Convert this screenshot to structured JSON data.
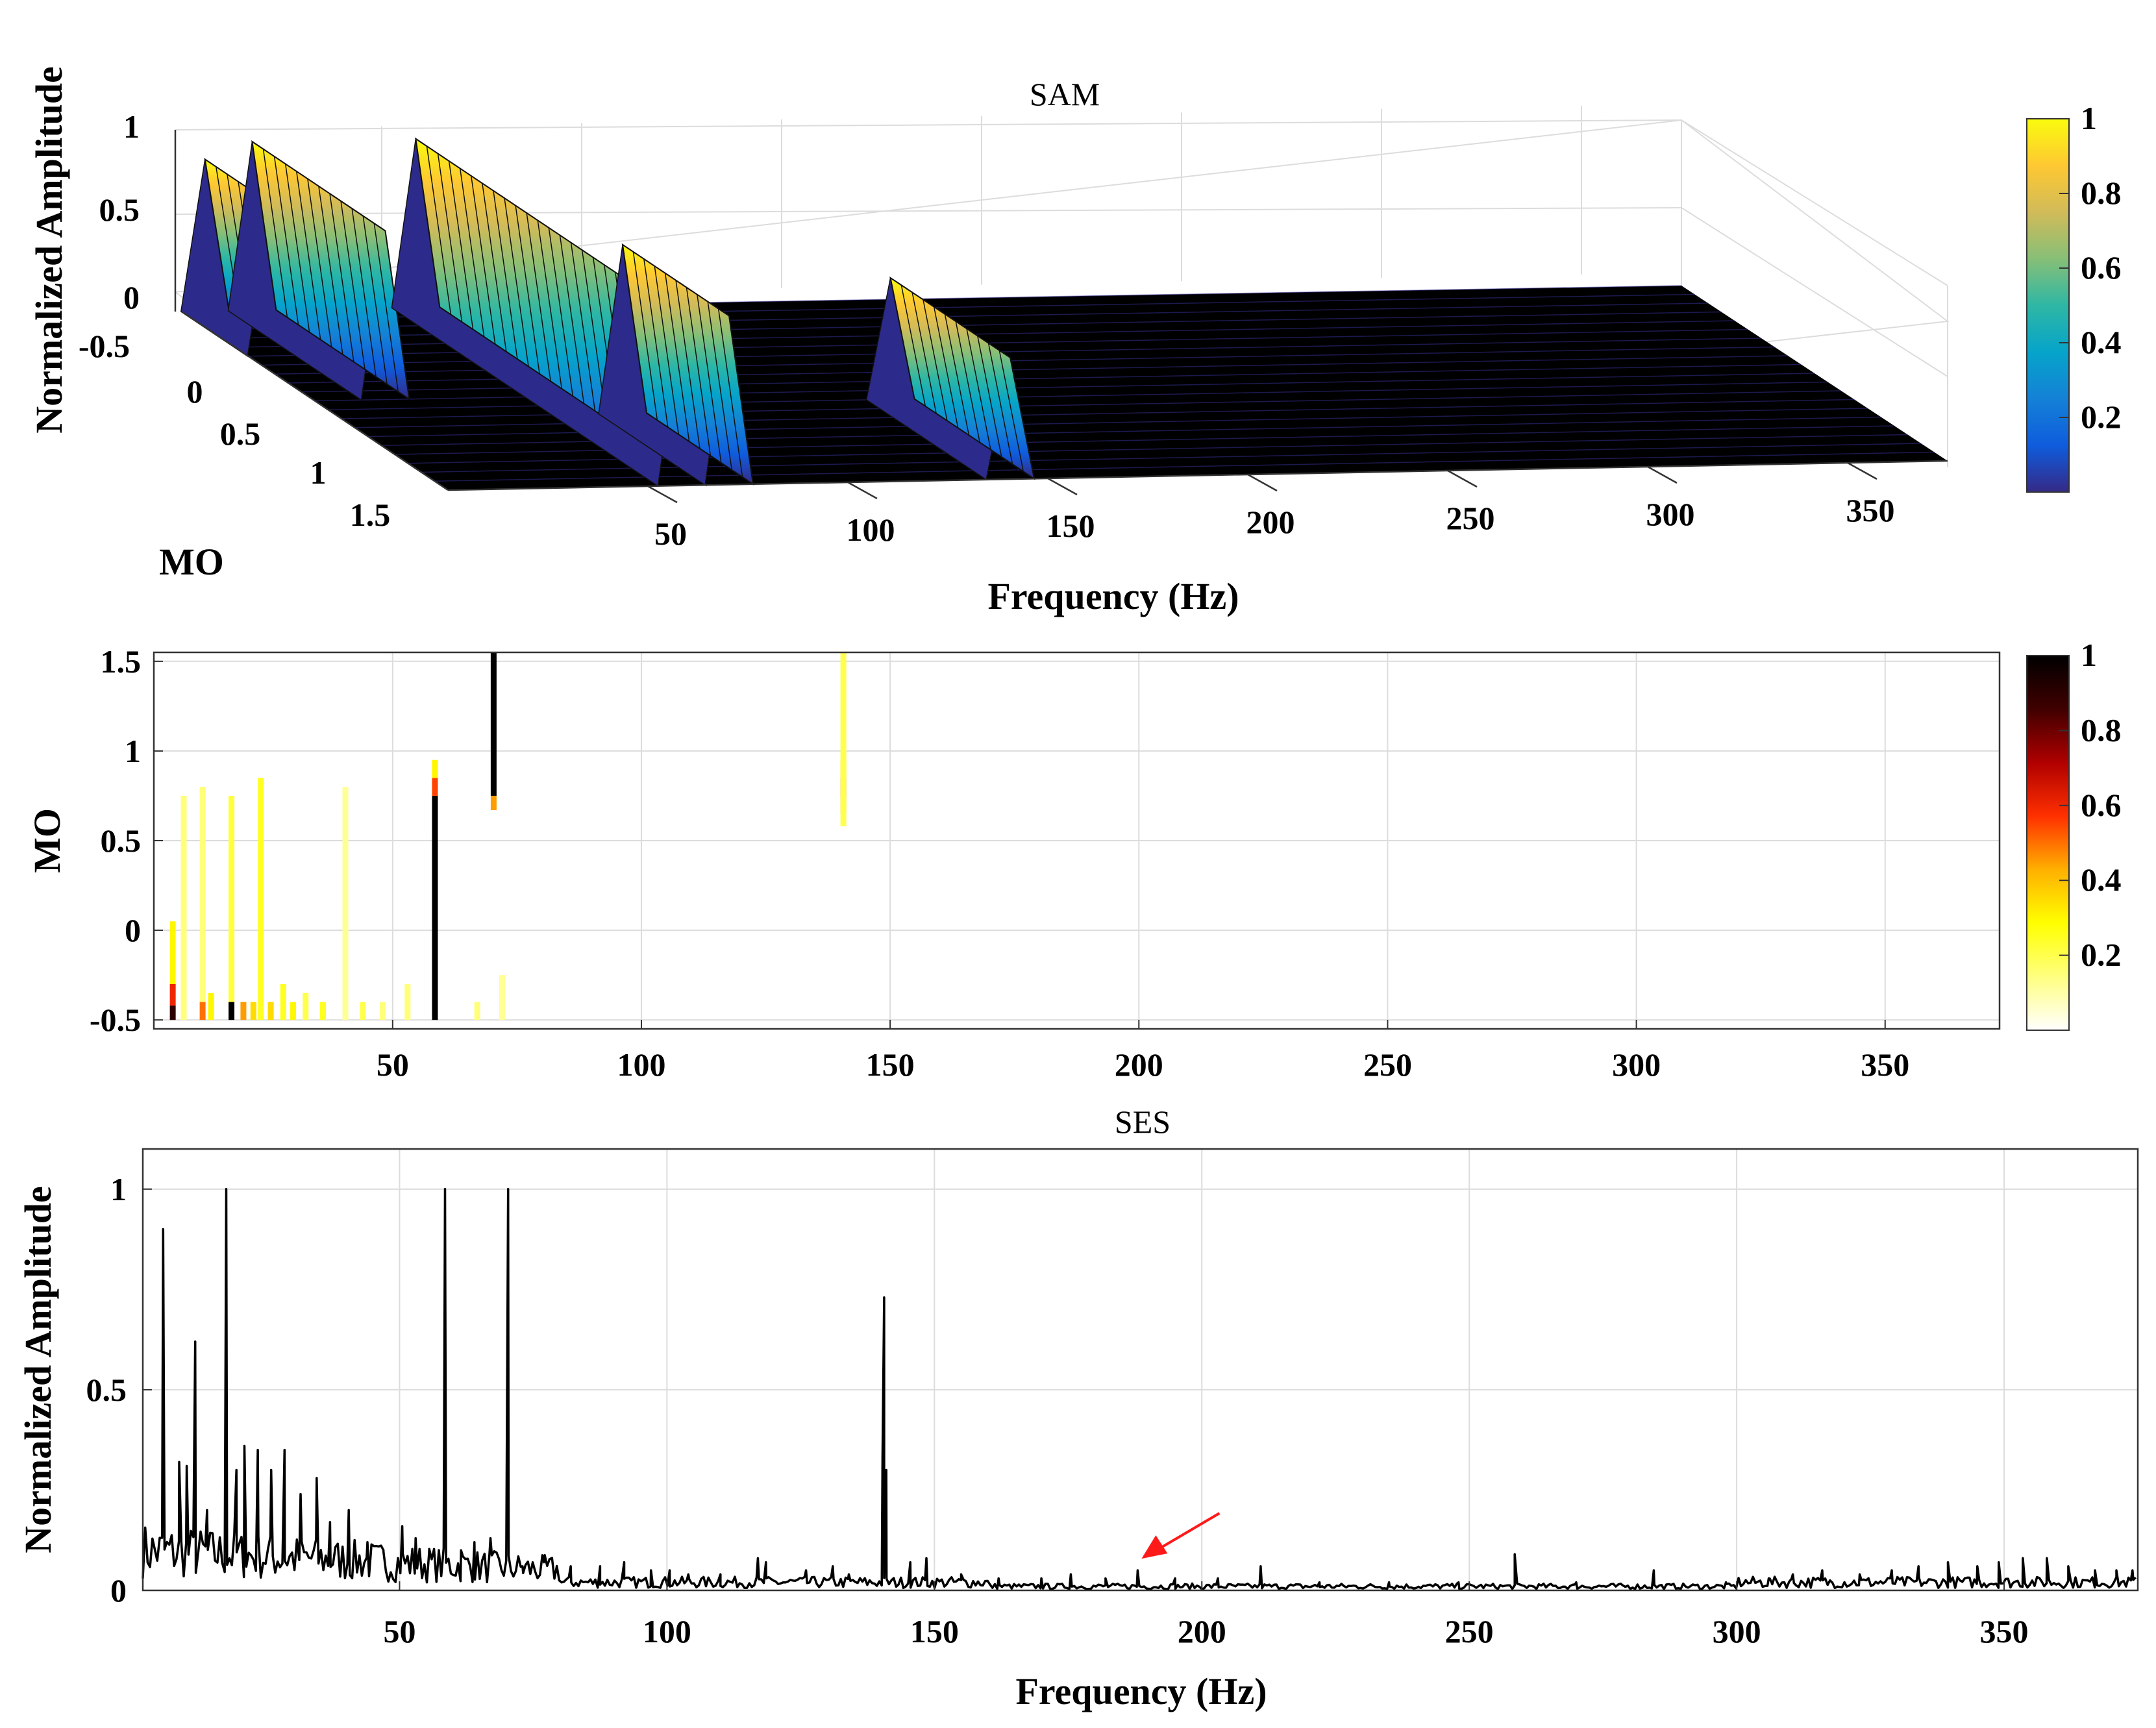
{
  "colors": {
    "surface_floor": "#000000",
    "trace": "#000000",
    "arrow": "#ff1a1a",
    "parula_stops": [
      "#352a87",
      "#0f5cdd",
      "#1481d6",
      "#06a4ca",
      "#2eb7a4",
      "#87bf77",
      "#d1bb59",
      "#fec832",
      "#f9fb0e"
    ],
    "hot_r_stops": [
      "#ffffff",
      "#ffff80",
      "#ffff00",
      "#ffb000",
      "#ff3000",
      "#b00000",
      "#400000",
      "#000000"
    ]
  },
  "chart_data": [
    {
      "id": "sam",
      "type": "surface3d",
      "title": "SAM",
      "xlabel": "Frequency (Hz)",
      "ylabel": "MO",
      "zlabel": "Normalized Amplitude",
      "x_ticks": [
        "50",
        "100",
        "150",
        "200",
        "250",
        "300",
        "350"
      ],
      "y_ticks": [
        "-0.5",
        "0",
        "0.5",
        "1",
        "1.5"
      ],
      "z_ticks": [
        "1",
        "0.5",
        "0",
        "-0.5"
      ],
      "xlim": [
        0,
        375
      ],
      "ylim": [
        -0.5,
        1.5
      ],
      "zlim": [
        -0.5,
        1
      ],
      "colorbar_ticks": [
        "1",
        "0.8",
        "0.6",
        "0.4",
        "0.2"
      ],
      "colormap": "parula",
      "ridges": [
        {
          "x": 5.8,
          "mo": [
            -0.5,
            0.0
          ],
          "z": 0.9
        },
        {
          "x": 17.6,
          "mo": [
            -0.5,
            0.5
          ],
          "z": 1.0
        },
        {
          "x": 58.5,
          "mo": [
            -0.5,
            1.5
          ],
          "z": 1.0
        },
        {
          "x": 70.3,
          "mo": [
            0.7,
            1.5
          ],
          "z": 1.0
        },
        {
          "x": 140.6,
          "mo": [
            0.6,
            1.5
          ],
          "z": 0.72
        }
      ]
    },
    {
      "id": "map",
      "type": "heatmap",
      "xlabel": "",
      "ylabel": "MO",
      "x_ticks": [
        50,
        100,
        150,
        200,
        250,
        300,
        350
      ],
      "y_ticks": [
        -0.5,
        0,
        0.5,
        1,
        1.5
      ],
      "xlim": [
        2,
        373
      ],
      "ylim": [
        -0.55,
        1.55
      ],
      "colorbar_ticks": [
        "1",
        "0.8",
        "0.6",
        "0.4",
        "0.2"
      ],
      "colormap": "hot_r",
      "columns": [
        {
          "x": 58.5,
          "mo_from": -0.5,
          "mo_to": 0.75,
          "level": 1.0
        },
        {
          "x": 58.5,
          "mo_from": 0.75,
          "mo_to": 0.85,
          "level": 0.55
        },
        {
          "x": 58.5,
          "mo_from": 0.85,
          "mo_to": 0.95,
          "level": 0.3
        },
        {
          "x": 70.3,
          "mo_from": 0.75,
          "mo_to": 1.55,
          "level": 1.0
        },
        {
          "x": 70.3,
          "mo_from": 0.67,
          "mo_to": 0.75,
          "level": 0.45
        },
        {
          "x": 140.6,
          "mo_from": 0.75,
          "mo_to": 0.85,
          "level": 0.6
        },
        {
          "x": 140.6,
          "mo_from": 0.65,
          "mo_to": 0.75,
          "level": 0.45
        },
        {
          "x": 140.6,
          "mo_from": 0.85,
          "mo_to": 0.95,
          "level": 0.4
        },
        {
          "x": 140.6,
          "mo_from": 0.58,
          "mo_to": 1.55,
          "level": 0.2
        },
        {
          "x": 17.6,
          "mo_from": -0.5,
          "mo_to": -0.4,
          "level": 1.0
        },
        {
          "x": 17.6,
          "mo_from": -0.4,
          "mo_to": 0.75,
          "level": 0.22
        },
        {
          "x": 5.8,
          "mo_from": -0.5,
          "mo_to": -0.42,
          "level": 0.9
        },
        {
          "x": 5.8,
          "mo_from": -0.42,
          "mo_to": -0.3,
          "level": 0.6
        },
        {
          "x": 5.8,
          "mo_from": -0.3,
          "mo_to": 0.05,
          "level": 0.3
        },
        {
          "x": 8.0,
          "mo_from": -0.5,
          "mo_to": 0.75,
          "level": 0.15
        },
        {
          "x": 11.8,
          "mo_from": -0.5,
          "mo_to": -0.4,
          "level": 0.5
        },
        {
          "x": 11.8,
          "mo_from": -0.4,
          "mo_to": 0.8,
          "level": 0.15
        },
        {
          "x": 13.5,
          "mo_from": -0.5,
          "mo_to": -0.35,
          "level": 0.3
        },
        {
          "x": 20.0,
          "mo_from": -0.5,
          "mo_to": -0.4,
          "level": 0.45
        },
        {
          "x": 22.0,
          "mo_from": -0.5,
          "mo_to": -0.4,
          "level": 0.35
        },
        {
          "x": 23.5,
          "mo_from": -0.5,
          "mo_to": 0.85,
          "level": 0.25
        },
        {
          "x": 25.5,
          "mo_from": -0.5,
          "mo_to": -0.4,
          "level": 0.35
        },
        {
          "x": 28.0,
          "mo_from": -0.5,
          "mo_to": -0.3,
          "level": 0.25
        },
        {
          "x": 30.0,
          "mo_from": -0.5,
          "mo_to": -0.4,
          "level": 0.3
        },
        {
          "x": 32.5,
          "mo_from": -0.5,
          "mo_to": -0.35,
          "level": 0.2
        },
        {
          "x": 36.0,
          "mo_from": -0.5,
          "mo_to": -0.4,
          "level": 0.25
        },
        {
          "x": 40.5,
          "mo_from": -0.5,
          "mo_to": 0.8,
          "level": 0.12
        },
        {
          "x": 44.0,
          "mo_from": -0.5,
          "mo_to": -0.4,
          "level": 0.2
        },
        {
          "x": 48.0,
          "mo_from": -0.5,
          "mo_to": -0.4,
          "level": 0.15
        },
        {
          "x": 53.0,
          "mo_from": -0.5,
          "mo_to": -0.3,
          "level": 0.15
        },
        {
          "x": 67.0,
          "mo_from": -0.5,
          "mo_to": -0.4,
          "level": 0.15
        },
        {
          "x": 72.0,
          "mo_from": -0.5,
          "mo_to": -0.25,
          "level": 0.12
        }
      ]
    },
    {
      "id": "ses",
      "type": "line",
      "title": "SES",
      "xlabel": "Frequency (Hz)",
      "ylabel": "Normalized Amplitude",
      "x_ticks": [
        50,
        100,
        150,
        200,
        250,
        300,
        350
      ],
      "y_ticks": [
        0,
        0.5,
        1
      ],
      "xlim": [
        2,
        375
      ],
      "ylim": [
        0,
        1.1
      ],
      "peaks": [
        {
          "x": 5.8,
          "y": 0.9
        },
        {
          "x": 8.8,
          "y": 0.32
        },
        {
          "x": 10.2,
          "y": 0.31
        },
        {
          "x": 11.8,
          "y": 0.62
        },
        {
          "x": 14.0,
          "y": 0.2
        },
        {
          "x": 17.6,
          "y": 1.0
        },
        {
          "x": 19.5,
          "y": 0.3
        },
        {
          "x": 21.0,
          "y": 0.36
        },
        {
          "x": 23.5,
          "y": 0.35
        },
        {
          "x": 26.0,
          "y": 0.3
        },
        {
          "x": 28.5,
          "y": 0.35
        },
        {
          "x": 31.5,
          "y": 0.24
        },
        {
          "x": 34.5,
          "y": 0.28
        },
        {
          "x": 37.0,
          "y": 0.17
        },
        {
          "x": 40.5,
          "y": 0.2
        },
        {
          "x": 44.0,
          "y": 0.12
        },
        {
          "x": 47.0,
          "y": 0.1
        },
        {
          "x": 50.5,
          "y": 0.16
        },
        {
          "x": 53.0,
          "y": 0.13
        },
        {
          "x": 55.5,
          "y": 0.09
        },
        {
          "x": 58.5,
          "y": 1.0
        },
        {
          "x": 61.5,
          "y": 0.1
        },
        {
          "x": 64.0,
          "y": 0.12
        },
        {
          "x": 67.0,
          "y": 0.13
        },
        {
          "x": 70.3,
          "y": 1.0
        },
        {
          "x": 73.0,
          "y": 0.06
        },
        {
          "x": 77.0,
          "y": 0.07
        },
        {
          "x": 82.0,
          "y": 0.06
        },
        {
          "x": 87.5,
          "y": 0.06
        },
        {
          "x": 92.0,
          "y": 0.07
        },
        {
          "x": 97.0,
          "y": 0.05
        },
        {
          "x": 100.5,
          "y": 0.05
        },
        {
          "x": 104.0,
          "y": 0.04
        },
        {
          "x": 110.0,
          "y": 0.04
        },
        {
          "x": 117.0,
          "y": 0.08
        },
        {
          "x": 118.5,
          "y": 0.07
        },
        {
          "x": 126.0,
          "y": 0.05
        },
        {
          "x": 131.0,
          "y": 0.06
        },
        {
          "x": 134.0,
          "y": 0.04
        },
        {
          "x": 140.3,
          "y": 0.33
        },
        {
          "x": 140.6,
          "y": 0.73
        },
        {
          "x": 141.0,
          "y": 0.3
        },
        {
          "x": 145.5,
          "y": 0.07
        },
        {
          "x": 148.5,
          "y": 0.08
        },
        {
          "x": 155.0,
          "y": 0.04
        },
        {
          "x": 162.0,
          "y": 0.03
        },
        {
          "x": 170.0,
          "y": 0.03
        },
        {
          "x": 175.5,
          "y": 0.04
        },
        {
          "x": 182.0,
          "y": 0.03
        },
        {
          "x": 188.0,
          "y": 0.05
        },
        {
          "x": 195.0,
          "y": 0.03
        },
        {
          "x": 203.0,
          "y": 0.03
        },
        {
          "x": 211.0,
          "y": 0.06
        },
        {
          "x": 222.0,
          "y": 0.02
        },
        {
          "x": 235.0,
          "y": 0.02
        },
        {
          "x": 248.0,
          "y": 0.02
        },
        {
          "x": 258.5,
          "y": 0.09
        },
        {
          "x": 270.0,
          "y": 0.02
        },
        {
          "x": 284.5,
          "y": 0.05
        },
        {
          "x": 298.0,
          "y": 0.02
        },
        {
          "x": 306.0,
          "y": 0.03
        },
        {
          "x": 310.5,
          "y": 0.04
        },
        {
          "x": 316.0,
          "y": 0.05
        },
        {
          "x": 323.0,
          "y": 0.04
        },
        {
          "x": 329.0,
          "y": 0.05
        },
        {
          "x": 334.0,
          "y": 0.06
        },
        {
          "x": 339.5,
          "y": 0.07
        },
        {
          "x": 345.0,
          "y": 0.06
        },
        {
          "x": 349.0,
          "y": 0.07
        },
        {
          "x": 353.5,
          "y": 0.08
        },
        {
          "x": 358.0,
          "y": 0.08
        },
        {
          "x": 362.0,
          "y": 0.06
        },
        {
          "x": 367.0,
          "y": 0.05
        },
        {
          "x": 371.0,
          "y": 0.05
        },
        {
          "x": 374.0,
          "y": 0.05
        }
      ],
      "annotation": {
        "type": "arrow",
        "target": {
          "x": 188.0,
          "y": 0.05
        }
      }
    }
  ]
}
